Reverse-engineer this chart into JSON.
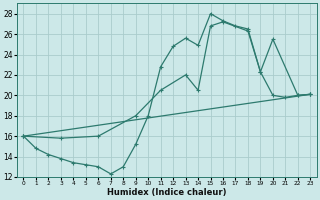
{
  "xlabel": "Humidex (Indice chaleur)",
  "bg_color": "#cce8e8",
  "grid_color": "#aacccc",
  "line_color": "#2d7a6e",
  "xlim": [
    -0.5,
    23.5
  ],
  "ylim": [
    12,
    29
  ],
  "yticks": [
    12,
    14,
    16,
    18,
    20,
    22,
    24,
    26,
    28
  ],
  "xticks": [
    0,
    1,
    2,
    3,
    4,
    5,
    6,
    7,
    8,
    9,
    10,
    11,
    12,
    13,
    14,
    15,
    16,
    17,
    18,
    19,
    20,
    21,
    22,
    23
  ],
  "line1_x": [
    0,
    1,
    2,
    3,
    4,
    5,
    6,
    7,
    8,
    9,
    10,
    11,
    12,
    13,
    14,
    15,
    16,
    17,
    18,
    19,
    20,
    21,
    22,
    23
  ],
  "line1_y": [
    16,
    14.8,
    14.2,
    13.8,
    13.4,
    13.2,
    13.0,
    12.3,
    13.0,
    15.2,
    18.0,
    22.8,
    24.8,
    25.6,
    24.9,
    28.0,
    27.3,
    26.8,
    26.5,
    22.3,
    20.0,
    19.8,
    20.0,
    20.1
  ],
  "line2_x": [
    0,
    3,
    6,
    9,
    11,
    13,
    14,
    15,
    16,
    18,
    19,
    20,
    22,
    23
  ],
  "line2_y": [
    16,
    15.8,
    16.0,
    18.0,
    20.5,
    22.0,
    20.5,
    26.8,
    27.2,
    26.3,
    22.3,
    25.5,
    20.0,
    20.1
  ],
  "line3_x": [
    0,
    23
  ],
  "line3_y": [
    16,
    20.1
  ]
}
